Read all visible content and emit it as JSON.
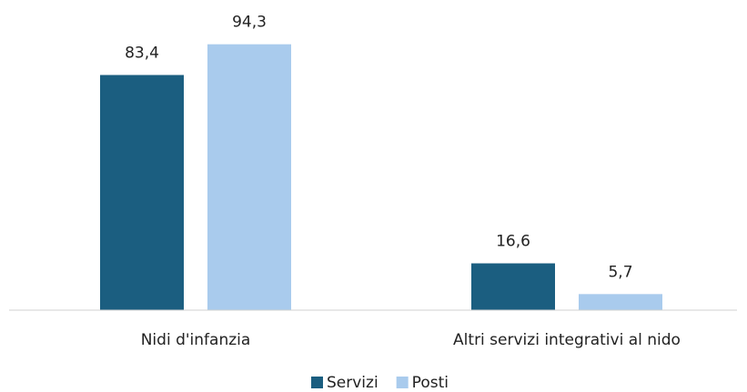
{
  "chart_data": {
    "type": "bar",
    "categories": [
      "Nidi d'infanzia",
      "Altri servizi integrativi al nido"
    ],
    "series": [
      {
        "name": "Servizi",
        "color": "#1b5e80",
        "values": [
          83.4,
          16.6
        ],
        "value_labels": [
          "83,4",
          "16,6"
        ]
      },
      {
        "name": "Posti",
        "color": "#a9cbed",
        "values": [
          94.3,
          5.7
        ],
        "value_labels": [
          "94,3",
          "5,7"
        ]
      }
    ],
    "ylim": [
      0,
      100
    ]
  }
}
